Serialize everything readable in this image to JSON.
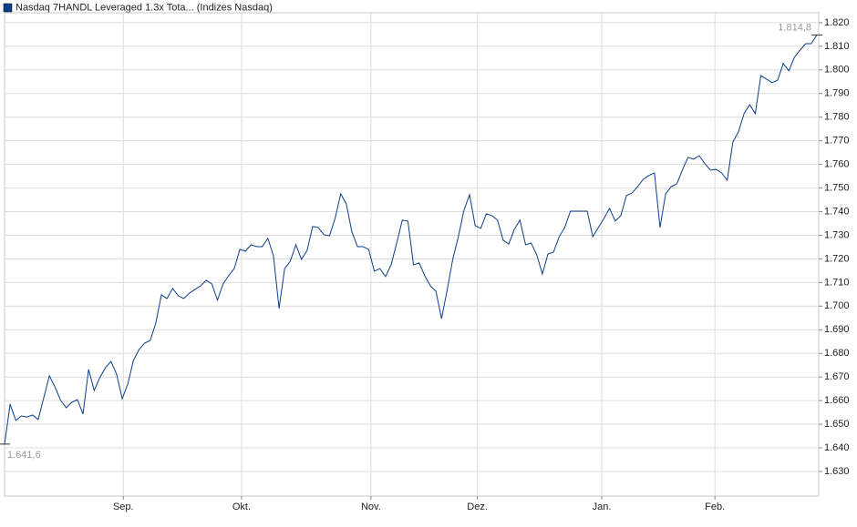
{
  "chart_data": {
    "type": "line",
    "legend": "Nasdaq 7HANDL Leveraged 1.3x Tota... (Indizes Nasdaq)",
    "grid": true,
    "series": [
      {
        "name": "Nasdaq 7HANDL Leveraged 1.3x Tota... (Indizes Nasdaq)",
        "color": "#0b3d8c",
        "values": [
          1641.6,
          1658.5,
          1651.6,
          1653.5,
          1653.1,
          1653.9,
          1652.0,
          1661.2,
          1670.5,
          1665.8,
          1660.1,
          1657.0,
          1659.3,
          1660.4,
          1654.3,
          1673.2,
          1664.3,
          1669.7,
          1673.9,
          1676.6,
          1671.2,
          1660.8,
          1667.0,
          1677.0,
          1681.6,
          1684.3,
          1685.5,
          1692.8,
          1704.8,
          1703.2,
          1707.5,
          1704.4,
          1703.2,
          1705.5,
          1707.1,
          1708.6,
          1710.9,
          1709.4,
          1702.5,
          1709.4,
          1712.9,
          1715.9,
          1724.0,
          1723.3,
          1726.0,
          1725.2,
          1725.2,
          1728.7,
          1721.3,
          1699.0,
          1715.9,
          1719.0,
          1726.0,
          1719.8,
          1723.6,
          1733.7,
          1733.3,
          1730.2,
          1729.8,
          1737.1,
          1747.5,
          1743.3,
          1731.4,
          1725.2,
          1725.2,
          1724.0,
          1714.8,
          1715.9,
          1712.5,
          1717.5,
          1726.7,
          1736.4,
          1736.0,
          1717.5,
          1718.3,
          1712.9,
          1708.6,
          1706.3,
          1694.7,
          1706.7,
          1719.8,
          1729.4,
          1740.6,
          1747.2,
          1734.1,
          1732.9,
          1739.1,
          1738.3,
          1736.4,
          1727.9,
          1726.3,
          1732.5,
          1736.4,
          1726.0,
          1726.7,
          1721.7,
          1713.6,
          1722.1,
          1722.9,
          1729.4,
          1733.3,
          1740.2,
          1740.2,
          1740.2,
          1740.2,
          1729.4,
          1733.3,
          1737.1,
          1741.4,
          1736.0,
          1738.3,
          1746.8,
          1747.9,
          1750.6,
          1753.7,
          1755.3,
          1756.4,
          1733.3,
          1747.5,
          1750.6,
          1751.8,
          1757.6,
          1763.0,
          1762.2,
          1763.7,
          1760.3,
          1757.6,
          1757.9,
          1756.4,
          1753.3,
          1769.5,
          1773.8,
          1781.5,
          1785.3,
          1781.5,
          1797.6,
          1796.1,
          1794.6,
          1795.7,
          1802.7,
          1799.6,
          1805.4,
          1808.4,
          1811.1,
          1811.1,
          1814.8
        ]
      }
    ],
    "x": [
      0,
      1,
      2,
      3,
      4,
      5,
      6,
      7,
      8,
      9,
      10,
      11,
      12,
      13,
      14,
      15,
      16,
      17,
      18,
      19,
      20,
      21,
      22,
      23,
      24,
      25,
      26,
      27,
      28,
      29,
      30,
      31,
      32,
      33,
      34,
      35,
      36,
      37,
      38,
      39,
      40,
      41,
      42,
      43,
      44,
      45,
      46,
      47,
      48,
      49,
      50,
      51,
      52,
      53,
      54,
      55,
      56,
      57,
      58,
      59,
      60,
      61,
      62,
      63,
      64,
      65,
      66,
      67,
      68,
      69,
      70,
      71,
      72,
      73,
      74,
      75,
      76,
      77,
      78,
      79,
      80,
      81,
      82,
      83,
      84,
      85,
      86,
      87,
      88,
      89,
      90,
      91,
      92,
      93,
      94,
      95,
      96,
      97,
      98,
      99,
      100,
      101,
      102,
      103,
      104,
      105,
      106,
      107,
      108,
      109,
      110,
      111,
      112,
      113,
      114,
      115,
      116,
      117,
      118,
      119,
      120,
      121,
      122,
      123,
      124,
      125,
      126,
      127,
      128,
      129,
      130,
      131,
      132,
      133,
      134,
      135,
      136,
      137,
      138,
      139,
      140,
      141,
      142,
      143,
      144,
      145
    ],
    "xlim": [
      0,
      145
    ],
    "xticks": [
      {
        "value": 21.2,
        "label": "Sep."
      },
      {
        "value": 42.3,
        "label": "Okt."
      },
      {
        "value": 65.4,
        "label": "Nov."
      },
      {
        "value": 84.4,
        "label": "Dez."
      },
      {
        "value": 106.6,
        "label": "Jan."
      },
      {
        "value": 126.8,
        "label": "Feb."
      }
    ],
    "ylim": [
      1619.6,
      1824.2
    ],
    "yticks": [
      {
        "value": 1630,
        "label": "1.630"
      },
      {
        "value": 1640,
        "label": "1.640"
      },
      {
        "value": 1650,
        "label": "1.650"
      },
      {
        "value": 1660,
        "label": "1.660"
      },
      {
        "value": 1670,
        "label": "1.670"
      },
      {
        "value": 1680,
        "label": "1.680"
      },
      {
        "value": 1690,
        "label": "1.690"
      },
      {
        "value": 1700,
        "label": "1.700"
      },
      {
        "value": 1710,
        "label": "1.710"
      },
      {
        "value": 1720,
        "label": "1.720"
      },
      {
        "value": 1730,
        "label": "1.730"
      },
      {
        "value": 1740,
        "label": "1.740"
      },
      {
        "value": 1750,
        "label": "1.750"
      },
      {
        "value": 1760,
        "label": "1.760"
      },
      {
        "value": 1770,
        "label": "1.770"
      },
      {
        "value": 1780,
        "label": "1.780"
      },
      {
        "value": 1790,
        "label": "1.790"
      },
      {
        "value": 1800,
        "label": "1.800"
      },
      {
        "value": 1810,
        "label": "1.810"
      },
      {
        "value": 1820,
        "label": "1.820"
      }
    ],
    "min_label": {
      "value": 1641.6,
      "label": "1.641,6"
    },
    "max_label": {
      "value": 1814.8,
      "label": "1.814,8"
    }
  }
}
